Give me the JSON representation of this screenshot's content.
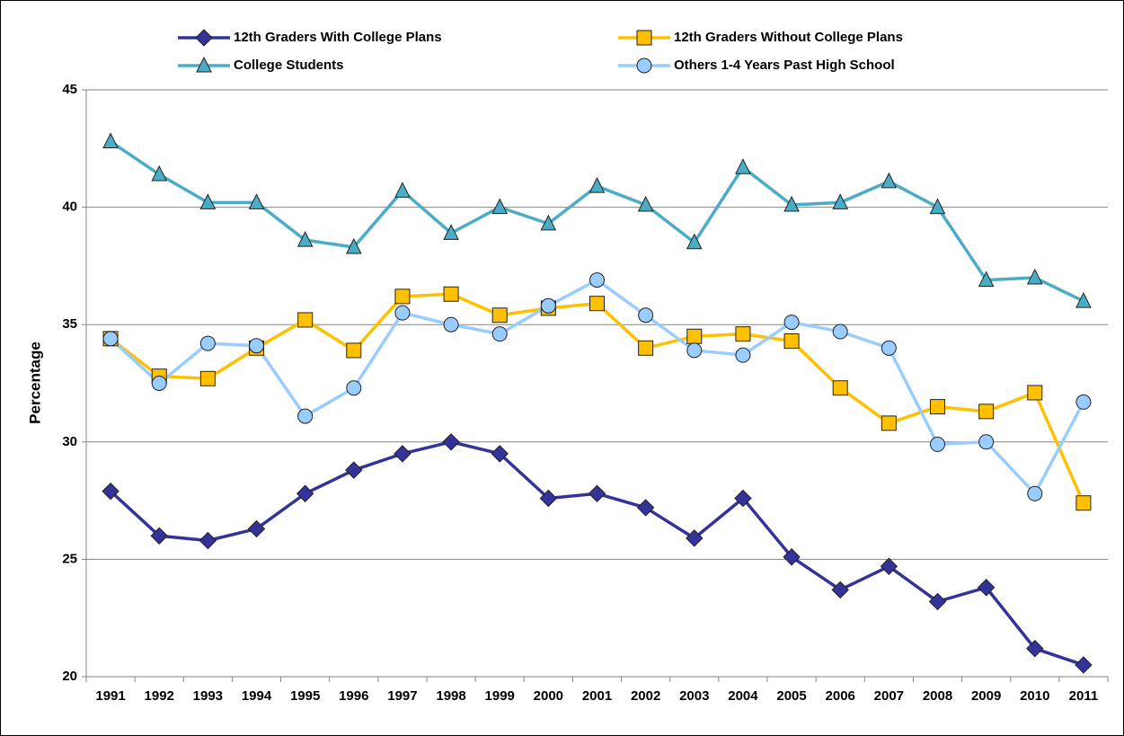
{
  "chart_data": {
    "type": "line",
    "y_label": "Percentage",
    "categories": [
      "1991",
      "1992",
      "1993",
      "1994",
      "1995",
      "1996",
      "1997",
      "1998",
      "1999",
      "2000",
      "2001",
      "2002",
      "2003",
      "2004",
      "2005",
      "2006",
      "2007",
      "2008",
      "2009",
      "2010",
      "2011"
    ],
    "series": [
      {
        "name": "12th Graders With College Plans",
        "color": "#333399",
        "marker": "diamond",
        "values": [
          27.9,
          26.0,
          25.8,
          26.3,
          27.8,
          28.8,
          29.5,
          30.0,
          29.5,
          27.6,
          27.8,
          27.2,
          25.9,
          27.6,
          25.1,
          23.7,
          24.7,
          23.2,
          23.8,
          21.2,
          20.5
        ]
      },
      {
        "name": "12th Graders Without College Plans",
        "color": "#ffc000",
        "marker": "square",
        "values": [
          34.4,
          32.8,
          32.7,
          34.0,
          35.2,
          33.9,
          36.2,
          36.3,
          35.4,
          35.7,
          35.9,
          34.0,
          34.5,
          34.6,
          34.3,
          32.3,
          30.8,
          31.5,
          31.3,
          32.1,
          27.4
        ]
      },
      {
        "name": "College Students",
        "color": "#4bacc6",
        "marker": "triangle",
        "values": [
          42.8,
          41.4,
          40.2,
          40.2,
          38.6,
          38.3,
          40.7,
          38.9,
          40.0,
          39.3,
          40.9,
          40.1,
          38.5,
          41.7,
          40.1,
          40.2,
          41.1,
          40.0,
          36.9,
          37.0,
          36.0
        ]
      },
      {
        "name": "Others 1-4 Years Past High School",
        "color": "#99ccff",
        "marker": "circle",
        "values": [
          34.4,
          32.5,
          34.2,
          34.1,
          31.1,
          32.3,
          35.5,
          35.0,
          34.6,
          35.8,
          36.9,
          35.4,
          33.9,
          33.7,
          35.1,
          34.7,
          34.0,
          29.9,
          30.0,
          27.8,
          31.7
        ]
      }
    ],
    "ylim": [
      20,
      45
    ],
    "yticks": [
      20,
      25,
      30,
      35,
      40,
      45
    ],
    "grid": true
  }
}
